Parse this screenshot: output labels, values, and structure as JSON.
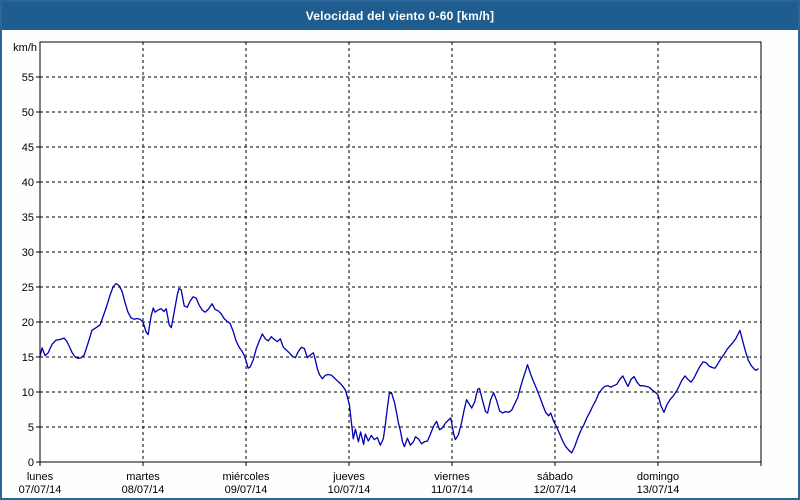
{
  "window": {
    "title": "Velocidad del viento 0-60 [km/h]"
  },
  "colors": {
    "titlebar_bg": "#1f5d8f",
    "titlebar_text": "#ffffff",
    "frame_border": "#2a6699",
    "page_bg": "#fdfefd",
    "plot_bg": "#fefffe",
    "grid": "#000000",
    "axis_text": "#000000",
    "line": "#0000b0"
  },
  "chart_data": {
    "type": "line",
    "title": "Velocidad del viento 0-60 [km/h]",
    "ylabel": "km/h",
    "xlabel": "",
    "ylim": [
      0,
      60
    ],
    "yticks": [
      0,
      5,
      10,
      15,
      20,
      25,
      30,
      35,
      40,
      45,
      50,
      55
    ],
    "x_unit": "hours",
    "xlim": [
      0,
      168
    ],
    "grid": "dashed",
    "legend": "none",
    "day_ticks": [
      {
        "hour": 0,
        "day": "lunes",
        "date": "07/07/14"
      },
      {
        "hour": 24,
        "day": "martes",
        "date": "08/07/14"
      },
      {
        "hour": 48,
        "day": "miércoles",
        "date": "09/07/14"
      },
      {
        "hour": 72,
        "day": "jueves",
        "date": "10/07/14"
      },
      {
        "hour": 96,
        "day": "viernes",
        "date": "11/07/14"
      },
      {
        "hour": 120,
        "day": "sábado",
        "date": "12/07/14"
      },
      {
        "hour": 144,
        "day": "domingo",
        "date": "13/07/14"
      }
    ],
    "series": [
      {
        "name": "Velocidad del viento",
        "color": "#0000b0",
        "points": [
          [
            0,
            15.1
          ],
          [
            0.5,
            16.3
          ],
          [
            1.2,
            15.2
          ],
          [
            1.9,
            15.6
          ],
          [
            2.8,
            16.8
          ],
          [
            3.7,
            17.4
          ],
          [
            4.7,
            17.5
          ],
          [
            5.6,
            17.7
          ],
          [
            6.3,
            17.2
          ],
          [
            7,
            16.3
          ],
          [
            7.5,
            15.6
          ],
          [
            8.2,
            15
          ],
          [
            8.9,
            14.8
          ],
          [
            9.6,
            14.9
          ],
          [
            10.3,
            15.3
          ],
          [
            11.2,
            17
          ],
          [
            12.1,
            18.8
          ],
          [
            13.1,
            19.2
          ],
          [
            14,
            19.6
          ],
          [
            14.7,
            20.8
          ],
          [
            15.4,
            22
          ],
          [
            16.3,
            23.8
          ],
          [
            17,
            25
          ],
          [
            17.7,
            25.5
          ],
          [
            18.4,
            25.2
          ],
          [
            19.1,
            24.4
          ],
          [
            19.8,
            22.8
          ],
          [
            20.5,
            21.4
          ],
          [
            21.2,
            20.6
          ],
          [
            21.9,
            20.4
          ],
          [
            22.6,
            20.5
          ],
          [
            23.3,
            20.4
          ],
          [
            24,
            20
          ],
          [
            24.7,
            18.6
          ],
          [
            25.2,
            18.2
          ],
          [
            25.9,
            20.9
          ],
          [
            26.4,
            22
          ],
          [
            26.8,
            21.4
          ],
          [
            27.5,
            21.7
          ],
          [
            28.2,
            21.9
          ],
          [
            28.9,
            21.5
          ],
          [
            29.4,
            21.9
          ],
          [
            30.1,
            19.6
          ],
          [
            30.6,
            19.2
          ],
          [
            31.3,
            21.5
          ],
          [
            32,
            23.9
          ],
          [
            32.4,
            24.8
          ],
          [
            32.9,
            24.6
          ],
          [
            33.6,
            22.3
          ],
          [
            34.3,
            22.1
          ],
          [
            35,
            23
          ],
          [
            35.7,
            23.6
          ],
          [
            36.4,
            23.4
          ],
          [
            37.1,
            22.4
          ],
          [
            37.8,
            21.7
          ],
          [
            38.5,
            21.4
          ],
          [
            39.2,
            21.8
          ],
          [
            40.1,
            22.6
          ],
          [
            40.8,
            21.8
          ],
          [
            41.5,
            21.6
          ],
          [
            42.2,
            21.2
          ],
          [
            42.9,
            20.5
          ],
          [
            43.6,
            20.1
          ],
          [
            44.3,
            19.8
          ],
          [
            45,
            18.7
          ],
          [
            45.7,
            17.3
          ],
          [
            46.4,
            16.4
          ],
          [
            47.1,
            15.8
          ],
          [
            47.6,
            15.2
          ],
          [
            48.1,
            14.3
          ],
          [
            48.5,
            13.4
          ],
          [
            49,
            13.6
          ],
          [
            49.7,
            14.6
          ],
          [
            50.4,
            16.2
          ],
          [
            51.1,
            17.3
          ],
          [
            51.8,
            18.3
          ],
          [
            52.5,
            17.6
          ],
          [
            53.2,
            17.3
          ],
          [
            53.9,
            17.9
          ],
          [
            54.6,
            17.5
          ],
          [
            55.3,
            17.2
          ],
          [
            56,
            17.6
          ],
          [
            56.7,
            16.4
          ],
          [
            57.4,
            16
          ],
          [
            58.1,
            15.6
          ],
          [
            58.8,
            15.1
          ],
          [
            59.5,
            14.9
          ],
          [
            60.2,
            15.8
          ],
          [
            60.9,
            16.4
          ],
          [
            61.6,
            16.2
          ],
          [
            62.3,
            14.9
          ],
          [
            63,
            15.3
          ],
          [
            63.7,
            15.6
          ],
          [
            64.2,
            14.5
          ],
          [
            64.6,
            13.4
          ],
          [
            65.1,
            12.5
          ],
          [
            65.8,
            11.9
          ],
          [
            66.5,
            12.4
          ],
          [
            67.2,
            12.5
          ],
          [
            67.9,
            12.4
          ],
          [
            68.6,
            12
          ],
          [
            69.3,
            11.6
          ],
          [
            70,
            11.2
          ],
          [
            70.7,
            10.7
          ],
          [
            71.2,
            10.2
          ],
          [
            71.6,
            9.3
          ],
          [
            72.1,
            8.2
          ],
          [
            72.6,
            5.4
          ],
          [
            73,
            3.3
          ],
          [
            73.5,
            4.7
          ],
          [
            74.2,
            2.9
          ],
          [
            74.7,
            4.3
          ],
          [
            75.4,
            2.5
          ],
          [
            75.8,
            4
          ],
          [
            76.5,
            3
          ],
          [
            77.2,
            3.8
          ],
          [
            77.9,
            3.2
          ],
          [
            78.6,
            3.5
          ],
          [
            79.3,
            2.4
          ],
          [
            80,
            3.3
          ],
          [
            80.5,
            5.5
          ],
          [
            81,
            8
          ],
          [
            81.4,
            9.8
          ],
          [
            81.9,
            9.9
          ],
          [
            82.6,
            8.5
          ],
          [
            83.1,
            7
          ],
          [
            83.5,
            5.6
          ],
          [
            84,
            4.4
          ],
          [
            84.5,
            2.8
          ],
          [
            84.9,
            2.2
          ],
          [
            85.6,
            3.4
          ],
          [
            86.3,
            2.4
          ],
          [
            87,
            2.9
          ],
          [
            87.5,
            3.6
          ],
          [
            88.2,
            3.3
          ],
          [
            88.9,
            2.6
          ],
          [
            89.6,
            2.9
          ],
          [
            90.3,
            3
          ],
          [
            91,
            4
          ],
          [
            91.7,
            5.1
          ],
          [
            92.4,
            5.8
          ],
          [
            93.1,
            4.6
          ],
          [
            93.8,
            4.9
          ],
          [
            94.5,
            5.6
          ],
          [
            95.2,
            6
          ],
          [
            95.7,
            6.3
          ],
          [
            96.4,
            4
          ],
          [
            96.8,
            3.2
          ],
          [
            97.5,
            3.9
          ],
          [
            98.2,
            5.5
          ],
          [
            98.9,
            7.6
          ],
          [
            99.4,
            8.9
          ],
          [
            100.1,
            8.2
          ],
          [
            100.6,
            7.7
          ],
          [
            101.3,
            8.6
          ],
          [
            102,
            10.4
          ],
          [
            102.4,
            10.5
          ],
          [
            103.1,
            8.8
          ],
          [
            103.8,
            7.2
          ],
          [
            104.3,
            7
          ],
          [
            105,
            8.9
          ],
          [
            105.7,
            9.9
          ],
          [
            106.4,
            8.8
          ],
          [
            107.1,
            7.3
          ],
          [
            107.8,
            7
          ],
          [
            108.5,
            7.2
          ],
          [
            109.2,
            7.1
          ],
          [
            109.9,
            7.4
          ],
          [
            110.6,
            8.3
          ],
          [
            111.3,
            9.2
          ],
          [
            112,
            10.8
          ],
          [
            112.7,
            12.2
          ],
          [
            113.2,
            13.1
          ],
          [
            113.6,
            13.9
          ],
          [
            114.3,
            12.6
          ],
          [
            115,
            11.5
          ],
          [
            115.7,
            10.5
          ],
          [
            116.4,
            9.4
          ],
          [
            117.1,
            8.2
          ],
          [
            117.8,
            7.1
          ],
          [
            118.5,
            6.6
          ],
          [
            119,
            7
          ],
          [
            119.7,
            5.8
          ],
          [
            120.4,
            5
          ],
          [
            121.1,
            4
          ],
          [
            121.8,
            3
          ],
          [
            122.5,
            2.2
          ],
          [
            123.2,
            1.7
          ],
          [
            123.9,
            1.3
          ],
          [
            124.6,
            2.2
          ],
          [
            125.3,
            3.4
          ],
          [
            126,
            4.5
          ],
          [
            126.7,
            5.3
          ],
          [
            127.4,
            6.3
          ],
          [
            128.1,
            7.1
          ],
          [
            128.8,
            8
          ],
          [
            129.5,
            8.8
          ],
          [
            130.2,
            9.8
          ],
          [
            130.9,
            10.4
          ],
          [
            131.6,
            10.8
          ],
          [
            132.3,
            10.9
          ],
          [
            133,
            10.7
          ],
          [
            133.7,
            10.9
          ],
          [
            134.4,
            11.1
          ],
          [
            135.1,
            11.8
          ],
          [
            135.8,
            12.3
          ],
          [
            136.5,
            11.4
          ],
          [
            137,
            10.8
          ],
          [
            137.7,
            11.8
          ],
          [
            138.4,
            12.2
          ],
          [
            139.1,
            11.4
          ],
          [
            139.8,
            10.9
          ],
          [
            140.5,
            10.9
          ],
          [
            141.2,
            10.8
          ],
          [
            141.9,
            10.7
          ],
          [
            142.6,
            10.3
          ],
          [
            143.3,
            10
          ],
          [
            144,
            9.6
          ],
          [
            144.7,
            8
          ],
          [
            145.4,
            7.1
          ],
          [
            146.1,
            8.2
          ],
          [
            146.8,
            8.9
          ],
          [
            147.5,
            9.4
          ],
          [
            148.2,
            10
          ],
          [
            148.9,
            10.8
          ],
          [
            149.6,
            11.7
          ],
          [
            150.3,
            12.3
          ],
          [
            151,
            11.8
          ],
          [
            151.7,
            11.4
          ],
          [
            152.4,
            12
          ],
          [
            153.1,
            12.9
          ],
          [
            153.8,
            13.7
          ],
          [
            154.5,
            14.3
          ],
          [
            155.2,
            14.2
          ],
          [
            155.9,
            13.7
          ],
          [
            156.6,
            13.5
          ],
          [
            157.3,
            13.4
          ],
          [
            158,
            14.1
          ],
          [
            158.7,
            14.8
          ],
          [
            159.4,
            15.4
          ],
          [
            160.1,
            16.1
          ],
          [
            160.8,
            16.6
          ],
          [
            161.5,
            17.1
          ],
          [
            162.2,
            17.7
          ],
          [
            162.6,
            18.2
          ],
          [
            163.1,
            18.8
          ],
          [
            163.6,
            17.6
          ],
          [
            164.3,
            16
          ],
          [
            165,
            14.6
          ],
          [
            165.7,
            13.8
          ],
          [
            166.4,
            13.3
          ],
          [
            166.8,
            13.1
          ],
          [
            167.3,
            13.3
          ]
        ]
      }
    ]
  }
}
